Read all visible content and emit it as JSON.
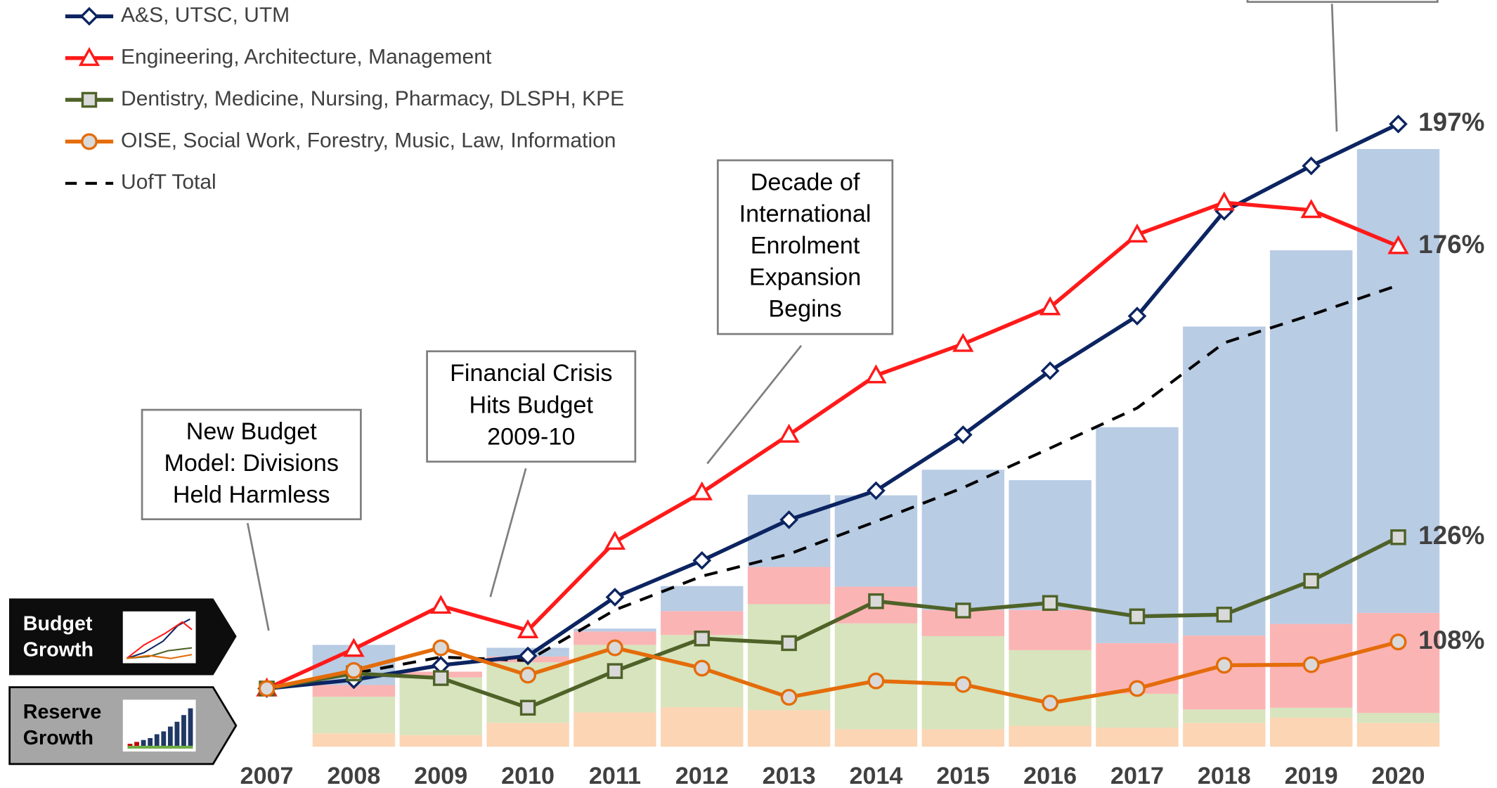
{
  "chart_data": {
    "type": "line",
    "categories": [
      "2007",
      "2008",
      "2009",
      "2010",
      "2011",
      "2012",
      "2013",
      "2014",
      "2015",
      "2016",
      "2017",
      "2018",
      "2019",
      "2020"
    ],
    "ylim": [
      90,
      200
    ],
    "y2lim": [
      0,
      110
    ],
    "legend": "top-left",
    "series": [
      {
        "name": "A&S, UTSC, UTM",
        "color": "#0c2461",
        "marker": "diamond",
        "marker_fill": "#ffffff",
        "values": [
          100,
          101.5,
          104,
          105.6,
          115.7,
          122,
          129,
          134,
          143.6,
          154.6,
          164,
          182,
          189.8,
          197
        ],
        "value_labels": [
          null,
          null,
          null,
          null,
          null,
          null,
          null,
          null,
          null,
          null,
          null,
          null,
          null,
          "197%"
        ]
      },
      {
        "name": "Engineering, Architecture, Management",
        "color": "#ff1a1a",
        "marker": "triangle",
        "marker_fill": "#ffffff",
        "values": [
          100,
          106.8,
          114.2,
          110,
          125.2,
          133.7,
          143.6,
          153.8,
          159.2,
          165.5,
          178,
          183.5,
          182.2,
          176
        ],
        "value_labels": [
          null,
          null,
          null,
          null,
          null,
          null,
          null,
          null,
          null,
          null,
          null,
          null,
          null,
          "176%"
        ]
      },
      {
        "name": "Dentistry, Medicine, Nursing, Pharmacy, DLSPH, KPE",
        "color": "#4f6228",
        "marker": "square",
        "marker_fill": "#d9d9d9",
        "values": [
          100,
          102.6,
          101.8,
          96.7,
          103,
          108.6,
          107.8,
          115,
          113.4,
          114.7,
          112.4,
          112.7,
          118.5,
          126
        ],
        "value_labels": [
          null,
          null,
          null,
          null,
          null,
          null,
          null,
          null,
          null,
          null,
          null,
          null,
          null,
          "126%"
        ]
      },
      {
        "name": "OISE, Social Work, Forestry, Music, Law, Information",
        "color": "#e46c0a",
        "marker": "circle",
        "marker_fill": "#d9d9d9",
        "values": [
          100,
          103.1,
          107,
          102.3,
          107,
          103.5,
          98.5,
          101.3,
          100.7,
          97.5,
          100,
          104,
          104.1,
          108
        ],
        "value_labels": [
          null,
          null,
          null,
          null,
          null,
          null,
          null,
          null,
          null,
          null,
          null,
          null,
          null,
          "108%"
        ]
      },
      {
        "name": "UofT Total",
        "color": "#000000",
        "dashed": true,
        "values": [
          100,
          102.6,
          105.4,
          104.8,
          113.5,
          119.3,
          123.1,
          128.7,
          134.5,
          141.3,
          148.2,
          159.4,
          164.2,
          169.3
        ]
      },
      {
        "type": "bar",
        "axis": "y2",
        "color": "#fcd5b5",
        "values": [
          0,
          2.3,
          2,
          4.1,
          5.9,
          6.8,
          6.3,
          3,
          3,
          3.6,
          3.3,
          4.1,
          5,
          4.1
        ]
      },
      {
        "type": "bar",
        "axis": "y2",
        "color": "#d7e4bd",
        "values": [
          0,
          6.3,
          9.9,
          10.4,
          11.6,
          12.4,
          18.2,
          18.2,
          16,
          13,
          5.8,
          2.3,
          1.7,
          1.7
        ]
      },
      {
        "type": "bar",
        "axis": "y2",
        "color": "#fbb4b4",
        "values": [
          0,
          2,
          1,
          1,
          2.3,
          4.1,
          6.4,
          6.3,
          4.5,
          6.9,
          8.7,
          12.7,
          14.4,
          17.2
        ]
      },
      {
        "type": "bar",
        "axis": "y2",
        "color": "#b8cce4",
        "values": [
          0,
          6.9,
          0,
          1.5,
          0.5,
          4.3,
          12.4,
          15.7,
          24.1,
          22.3,
          37.1,
          53.1,
          64.2,
          79.7
        ]
      }
    ],
    "annotations": [
      {
        "lines": [
          "New Budget",
          "Model: Divisions",
          "Held Harmless"
        ]
      },
      {
        "lines": [
          "Financial Crisis",
          "Hits Budget",
          "2009-10"
        ]
      },
      {
        "lines": [
          "Decade of",
          "International",
          "Enrolment",
          "Expansion",
          "Begins"
        ]
      }
    ],
    "side_labels": [
      {
        "lines": [
          "Budget",
          "Growth"
        ]
      },
      {
        "lines": [
          "Reserve",
          "Growth"
        ]
      }
    ]
  }
}
